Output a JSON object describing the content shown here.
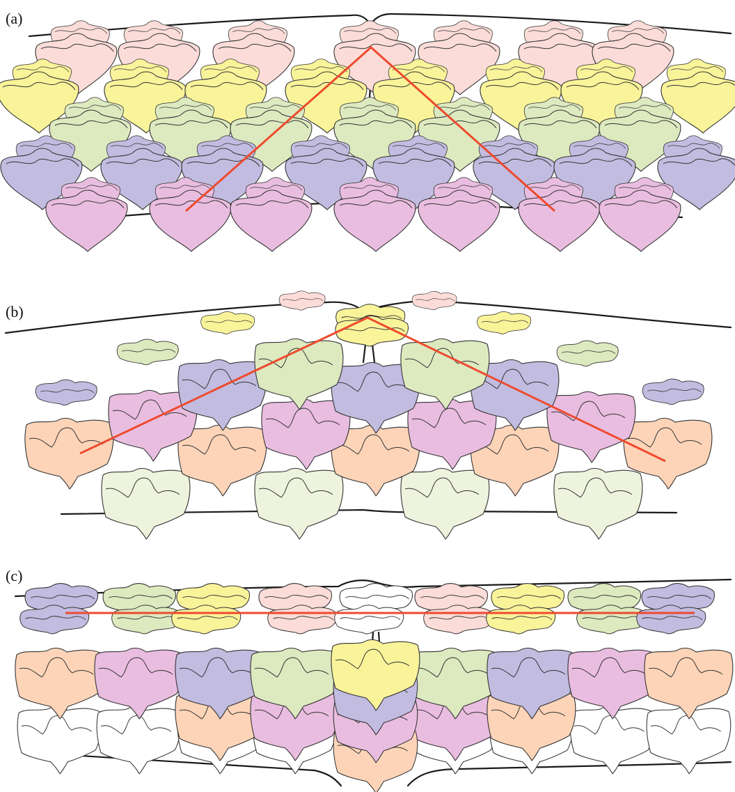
{
  "colors": {
    "pink": "#fbdcd8",
    "yellow": "#f9f39a",
    "green": "#dde9bf",
    "purple": "#c2bce0",
    "magenta": "#e9bde0",
    "orange": "#fdd4b8",
    "pale_green": "#eef3dd",
    "white": "#ffffff",
    "red_line": "#ee4a2e"
  },
  "panels": [
    {
      "id": "a",
      "label": "(a)",
      "rows": [
        "pink",
        "yellow",
        "green",
        "purple",
        "magenta"
      ],
      "red_line_shape": "chevron"
    },
    {
      "id": "b",
      "label": "(b)",
      "rows": [
        "pink",
        "yellow",
        "green",
        "purple",
        "magenta",
        "orange",
        "pale_green"
      ],
      "red_line_shape": "chevron"
    },
    {
      "id": "c",
      "label": "(c)",
      "rows": [
        "purple",
        "green",
        "yellow",
        "pink",
        "white",
        "orange",
        "magenta"
      ],
      "red_line_shape": "straight"
    }
  ]
}
